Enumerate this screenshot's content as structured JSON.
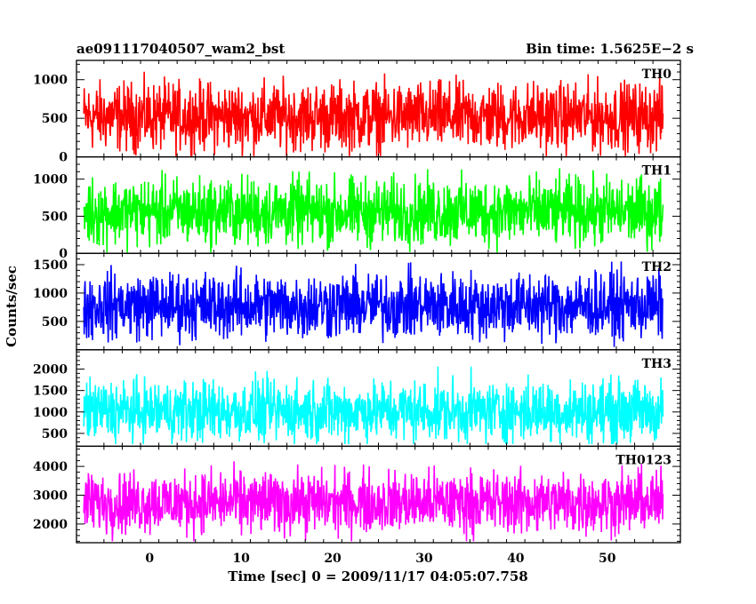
{
  "chart_data": {
    "type": "line",
    "title_left": "ae091117040507_wam2_bst",
    "title_right": "Bin time: 1.5625E−2 s",
    "xlabel": "Time [sec] 0 = 2009/11/17 04:05:07.758",
    "ylabel": "Counts/sec",
    "xlim": [
      -8,
      58
    ],
    "xticks": [
      0,
      10,
      20,
      30,
      40,
      50
    ],
    "data_x_range": [
      -7.2,
      56.1
    ],
    "panels": [
      {
        "name": "TH0",
        "color": "#ff0000",
        "ylim": [
          0,
          1250
        ],
        "yticks": [
          0,
          500,
          1000
        ],
        "mean": 520,
        "min": 10,
        "max": 1250
      },
      {
        "name": "TH1",
        "color": "#00ff00",
        "ylim": [
          0,
          1300
        ],
        "yticks": [
          0,
          500,
          1000
        ],
        "mean": 560,
        "min": 10,
        "max": 1300
      },
      {
        "name": "TH2",
        "color": "#0000ff",
        "ylim": [
          0,
          1700
        ],
        "yticks": [
          500,
          1000,
          1500
        ],
        "mean": 780,
        "min": 50,
        "max": 1700
      },
      {
        "name": "TH3",
        "color": "#00ffff",
        "ylim": [
          200,
          2450
        ],
        "yticks": [
          500,
          1000,
          1500,
          2000
        ],
        "mean": 1020,
        "min": 250,
        "max": 2300
      },
      {
        "name": "TH0123",
        "color": "#ff00ff",
        "ylim": [
          1350,
          4700
        ],
        "yticks": [
          2000,
          3000,
          4000
        ],
        "mean": 2750,
        "min": 1400,
        "max": 4450
      }
    ]
  }
}
